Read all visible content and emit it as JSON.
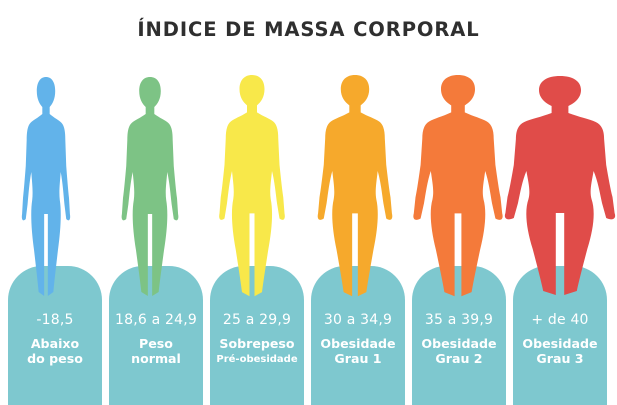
{
  "title": "ÍNDICE DE MASSA CORPORAL",
  "pedestal_color": "#7ec8cf",
  "categories": [
    {
      "range": "-18,5",
      "label_line1": "Abaixo",
      "label_line2": "do peso",
      "sub": "",
      "color": "#62b3ea",
      "icon": "slim-body-icon"
    },
    {
      "range": "18,6 a 24,9",
      "label_line1": "Peso",
      "label_line2": "normal",
      "sub": "",
      "color": "#7dc385",
      "icon": "normal-body-icon"
    },
    {
      "range": "25 a 29,9",
      "label_line1": "Sobrepeso",
      "label_line2": "",
      "sub": "Pré-obesidade",
      "color": "#f8e84a",
      "icon": "overweight-body-icon"
    },
    {
      "range": "30 a 34,9",
      "label_line1": "Obesidade",
      "label_line2": "Grau 1",
      "sub": "",
      "color": "#f6a92c",
      "icon": "obese-1-body-icon"
    },
    {
      "range": "35 a 39,9",
      "label_line1": "Obesidade",
      "label_line2": "Grau 2",
      "sub": "",
      "color": "#f47a3a",
      "icon": "obese-2-body-icon"
    },
    {
      "range": "+ de 40",
      "label_line1": "Obesidade",
      "label_line2": "Grau 3",
      "sub": "",
      "color": "#e04c49",
      "icon": "obese-3-body-icon"
    }
  ]
}
